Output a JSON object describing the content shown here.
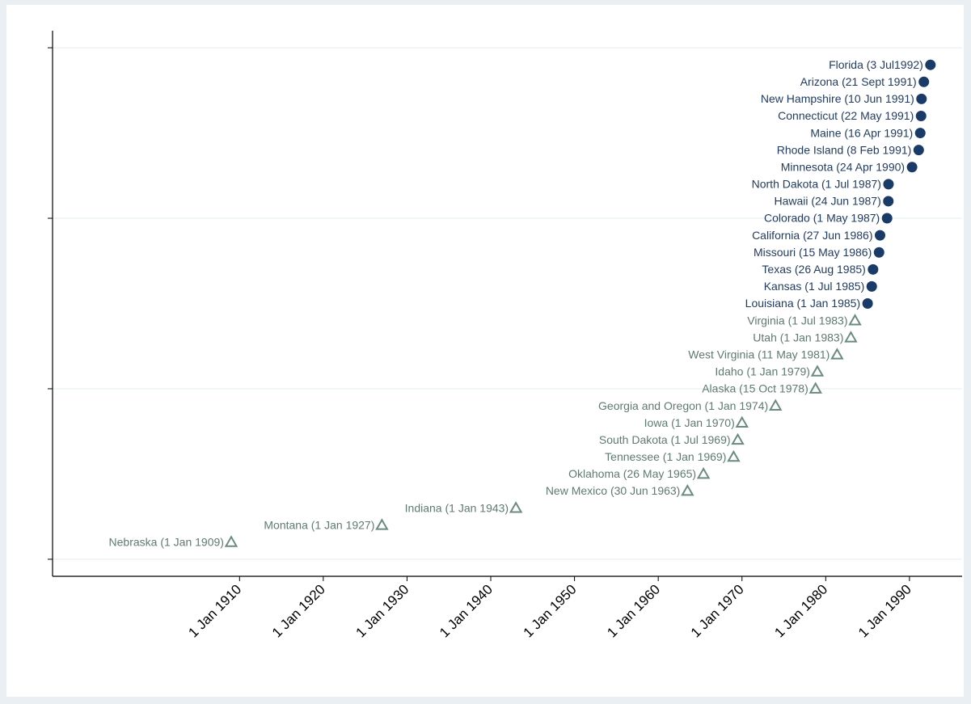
{
  "chart_data": {
    "type": "scatter",
    "xlim": [
      "1887-09-01",
      "1994-03-01"
    ],
    "xticks": [
      {
        "value": "1910-01-01",
        "label": "1 Jan 1910"
      },
      {
        "value": "1920-01-01",
        "label": "1 Jan 1920"
      },
      {
        "value": "1930-01-01",
        "label": "1 Jan 1930"
      },
      {
        "value": "1940-01-01",
        "label": "1 Jan 1940"
      },
      {
        "value": "1950-01-01",
        "label": "1 Jan 1950"
      },
      {
        "value": "1960-01-01",
        "label": "1 Jan 1960"
      },
      {
        "value": "1970-01-01",
        "label": "1 Jan 1970"
      },
      {
        "value": "1980-01-01",
        "label": "1 Jan 1980"
      },
      {
        "value": "1990-01-01",
        "label": "1 Jan 1990"
      }
    ],
    "ylim": [
      -1,
      31
    ],
    "yticks": [
      0,
      10,
      20,
      30
    ],
    "grid": true,
    "series": [
      {
        "marker": "triangle",
        "color": "#6b8a80",
        "label_color": "#5f7a72",
        "x": [
          "1909-01-01",
          "1927-01-01",
          "1943-01-01",
          "1963-06-30",
          "1965-05-26",
          "1969-01-01",
          "1969-07-01",
          "1970-01-01",
          "1974-01-01",
          "1978-10-15",
          "1979-01-01",
          "1981-05-11",
          "1983-01-01",
          "1983-07-01"
        ],
        "values": [
          1,
          2,
          3,
          4,
          5,
          6,
          7,
          8,
          9,
          10,
          11,
          12,
          13,
          14
        ],
        "labels": [
          "Nebraska (1 Jan 1909)",
          "Montana (1 Jan 1927)",
          "Indiana (1 Jan 1943)",
          "New Mexico (30 Jun 1963)",
          "Oklahoma (26 May 1965)",
          "Tennessee (1 Jan 1969)",
          "South Dakota (1 Jul 1969)",
          "Iowa (1 Jan 1970)",
          "Georgia and Oregon (1 Jan 1974)",
          "Alaska (15 Oct 1978)",
          "Idaho (1 Jan 1979)",
          "West Virginia (11 May 1981)",
          "Utah (1 Jan 1983)",
          "Virginia (1 Jul 1983)"
        ]
      },
      {
        "marker": "circle",
        "color": "#1a3b68",
        "label_color": "#1f3a5f",
        "x": [
          "1985-01-01",
          "1985-07-01",
          "1985-08-26",
          "1986-05-15",
          "1986-06-27",
          "1987-05-01",
          "1987-06-24",
          "1987-07-01",
          "1990-04-24",
          "1991-02-08",
          "1991-04-16",
          "1991-05-22",
          "1991-06-10",
          "1991-09-21",
          "1992-07-03"
        ],
        "values": [
          15,
          16,
          17,
          18,
          19,
          20,
          21,
          22,
          23,
          24,
          25,
          26,
          27,
          28,
          29
        ],
        "labels": [
          "Louisiana (1 Jan 1985)",
          "Kansas (1 Jul 1985)",
          "Texas (26 Aug 1985)",
          "Missouri (15 May 1986)",
          "California (27 Jun 1986)",
          "Colorado (1 May 1987)",
          "Hawaii (24 Jun 1987)",
          "North Dakota (1 Jul 1987)",
          "Minnesota (24 Apr 1990)",
          "Rhode Island (8 Feb 1991)",
          "Maine (16 Apr 1991)",
          "Connecticut (22 May 1991)",
          "New Hampshire (10 Jun 1991)",
          "Arizona (21 Sept 1991)",
          "Florida (3 Jul1992)"
        ]
      }
    ]
  }
}
